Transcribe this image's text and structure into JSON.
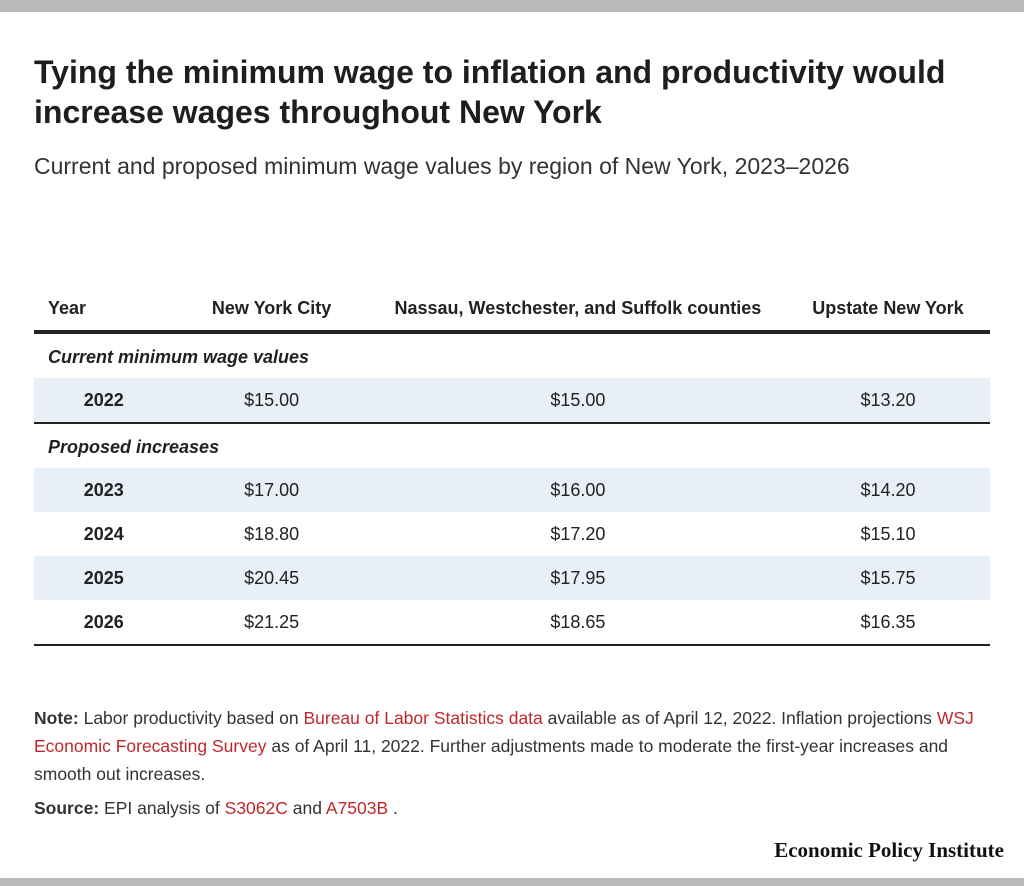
{
  "header": {
    "title": "Tying the minimum wage to inflation and productivity would increase wages throughout New York",
    "subtitle": "Current and proposed minimum wage values by region of New York, 2023–2026"
  },
  "table": {
    "columns": [
      "Year",
      "New York City",
      "Nassau, Westchester, and Suffolk counties",
      "Upstate New York"
    ],
    "groups": [
      {
        "label": "Current minimum wage values",
        "rows": [
          [
            "2022",
            "$15.00",
            "$15.00",
            "$13.20"
          ]
        ]
      },
      {
        "label": "Proposed increases",
        "rows": [
          [
            "2023",
            "$17.00",
            "$16.00",
            "$14.20"
          ],
          [
            "2024",
            "$18.80",
            "$17.20",
            "$15.10"
          ],
          [
            "2025",
            "$20.45",
            "$17.95",
            "$15.75"
          ],
          [
            "2026",
            "$21.25",
            "$18.65",
            "$16.35"
          ]
        ]
      }
    ]
  },
  "note": {
    "label": "Note:",
    "segments": [
      {
        "text": "Labor productivity based on"
      },
      {
        "text": "Bureau of Labor Statistics data",
        "link": true
      },
      {
        "text": "available as of April 12, 2022. Inflation projections"
      },
      {
        "text": "WSJ Economic Forecasting Survey",
        "link": true
      },
      {
        "text": "as of April 11, 2022. Further adjustments made to moderate the first-year increases and smooth out increases."
      }
    ]
  },
  "source": {
    "label": "Source:",
    "segments": [
      {
        "text": "EPI analysis of"
      },
      {
        "text": "S3062C",
        "link": true
      },
      {
        "text": "and"
      },
      {
        "text": "A7503B",
        "link": true
      },
      {
        "text": "."
      }
    ]
  },
  "footer": {
    "brand": "Economic Policy Institute"
  }
}
